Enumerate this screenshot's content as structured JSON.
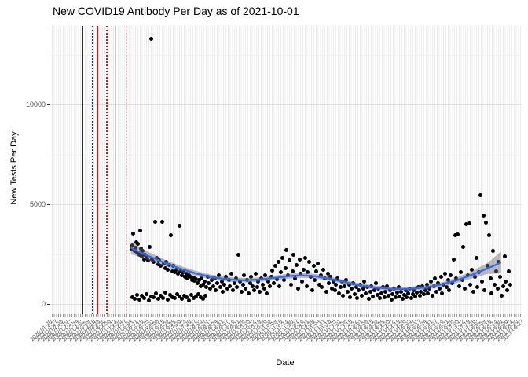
{
  "chart_data": {
    "type": "scatter",
    "title": "New COVID19 Antibody Per Day as of 2021-10-01",
    "xlabel": "Date",
    "ylabel": "New Tests Per Day",
    "y_ticks": [
      0,
      5000,
      10000
    ],
    "y_minor_ticks": [
      2500,
      7500,
      12500
    ],
    "ylim": [
      -510,
      13940
    ],
    "grid": "on",
    "legend": "none",
    "point_color": "#000000",
    "smooth_line_color": "#3366FF",
    "ci_fill_color": "rgba(110,110,110,0.45)",
    "x_tick_labels": [
      "2020-01-20",
      "2020-01-27",
      "2020-02-03",
      "2020-02-10",
      "2020-02-17",
      "2020-02-24",
      "2020-03-02",
      "2020-03-09",
      "2020-03-16",
      "2020-03-23",
      "2020-03-30",
      "2020-04-06",
      "2020-04-13",
      "2020-04-20",
      "2020-04-27",
      "2020-05-04",
      "2020-05-11",
      "2020-05-18",
      "2020-05-25",
      "2020-06-01",
      "2020-06-08",
      "2020-06-15",
      "2020-06-22",
      "2020-06-29",
      "2020-07-06",
      "2020-07-13",
      "2020-07-20",
      "2020-07-27",
      "2020-08-03",
      "2020-08-10",
      "2020-08-17",
      "2020-08-24",
      "2020-08-31",
      "2020-09-07",
      "2020-09-14",
      "2020-09-21",
      "2020-09-28",
      "2020-10-05",
      "2020-10-12",
      "2020-10-19",
      "2020-10-26",
      "2020-11-02",
      "2020-11-09",
      "2020-11-16",
      "2020-11-23",
      "2020-11-30",
      "2020-12-07",
      "2020-12-14",
      "2020-12-21",
      "2020-12-28",
      "2021-01-04",
      "2021-01-11",
      "2021-01-18",
      "2021-01-25",
      "2021-02-01",
      "2021-02-08",
      "2021-02-15",
      "2021-02-22",
      "2021-03-01",
      "2021-03-08",
      "2021-03-15",
      "2021-03-22",
      "2021-03-29",
      "2021-04-05",
      "2021-04-12",
      "2021-04-19",
      "2021-04-26",
      "2021-05-03",
      "2021-05-10",
      "2021-05-17",
      "2021-05-24",
      "2021-05-31",
      "2021-06-07",
      "2021-06-14",
      "2021-06-21",
      "2021-06-28",
      "2021-07-05",
      "2021-07-12",
      "2021-07-19",
      "2021-07-26",
      "2021-08-02",
      "2021-08-09",
      "2021-08-16",
      "2021-08-23",
      "2021-08-30",
      "2021-09-06",
      "2021-09-13",
      "2021-09-20",
      "2021-09-27"
    ],
    "event_vlines": [
      {
        "x_frac": 0.0708,
        "color": "#1a1ac8",
        "style": "solid"
      },
      {
        "x_frac": 0.0908,
        "color": "#1a1ac8",
        "style": "dotted"
      },
      {
        "x_frac": 0.1017,
        "color": "#e01010",
        "style": "solid"
      },
      {
        "x_frac": 0.1208,
        "color": "#e01010",
        "style": "dotted"
      },
      {
        "x_frac": 0.1408,
        "color": "#ffb0c0",
        "style": "solid"
      },
      {
        "x_frac": 0.1617,
        "color": "#ffb0c0",
        "style": "dotted"
      }
    ],
    "smooth": {
      "x": [
        0.173,
        0.21,
        0.245,
        0.28,
        0.312,
        0.345,
        0.379,
        0.412,
        0.446,
        0.479,
        0.512,
        0.537,
        0.562,
        0.595,
        0.629,
        0.662,
        0.695,
        0.729,
        0.762,
        0.795,
        0.829,
        0.862,
        0.895,
        0.929,
        0.958
      ],
      "y": [
        2800,
        2400,
        2050,
        1750,
        1520,
        1340,
        1230,
        1190,
        1220,
        1310,
        1400,
        1430,
        1390,
        1260,
        1080,
        920,
        810,
        750,
        750,
        820,
        960,
        1170,
        1450,
        1780,
        2080
      ],
      "ci": [
        300,
        210,
        165,
        140,
        130,
        120,
        115,
        110,
        110,
        115,
        120,
        120,
        115,
        110,
        105,
        100,
        100,
        100,
        105,
        110,
        120,
        140,
        180,
        280,
        550
      ]
    },
    "points": [
      [
        0.174,
        2720
      ],
      [
        0.176,
        2950
      ],
      [
        0.178,
        3540
      ],
      [
        0.18,
        2640
      ],
      [
        0.182,
        2800
      ],
      [
        0.184,
        3110
      ],
      [
        0.186,
        2560
      ],
      [
        0.188,
        3030
      ],
      [
        0.19,
        2480
      ],
      [
        0.192,
        3700
      ],
      [
        0.194,
        2760
      ],
      [
        0.196,
        2400
      ],
      [
        0.198,
        2640
      ],
      [
        0.2,
        2240
      ],
      [
        0.203,
        2480
      ],
      [
        0.206,
        2320
      ],
      [
        0.209,
        2170
      ],
      [
        0.212,
        2870
      ],
      [
        0.215,
        13300
      ],
      [
        0.218,
        2240
      ],
      [
        0.221,
        2090
      ],
      [
        0.224,
        4130
      ],
      [
        0.227,
        2320
      ],
      [
        0.23,
        1970
      ],
      [
        0.233,
        2170
      ],
      [
        0.236,
        1890
      ],
      [
        0.239,
        4130
      ],
      [
        0.242,
        2010
      ],
      [
        0.245,
        1810
      ],
      [
        0.248,
        2090
      ],
      [
        0.251,
        1730
      ],
      [
        0.254,
        1930
      ],
      [
        0.257,
        3430
      ],
      [
        0.26,
        1650
      ],
      [
        0.263,
        1890
      ],
      [
        0.266,
        1580
      ],
      [
        0.269,
        1730
      ],
      [
        0.272,
        1500
      ],
      [
        0.275,
        3930
      ],
      [
        0.278,
        1650
      ],
      [
        0.281,
        1420
      ],
      [
        0.284,
        1580
      ],
      [
        0.287,
        1350
      ],
      [
        0.29,
        1500
      ],
      [
        0.293,
        1270
      ],
      [
        0.296,
        1420
      ],
      [
        0.299,
        1350
      ],
      [
        0.302,
        1200
      ],
      [
        0.305,
        1310
      ],
      [
        0.308,
        1160
      ],
      [
        0.311,
        1230
      ],
      [
        0.175,
        350
      ],
      [
        0.18,
        240
      ],
      [
        0.185,
        470
      ],
      [
        0.19,
        200
      ],
      [
        0.195,
        430
      ],
      [
        0.2,
        280
      ],
      [
        0.205,
        510
      ],
      [
        0.21,
        160
      ],
      [
        0.215,
        390
      ],
      [
        0.22,
        320
      ],
      [
        0.225,
        550
      ],
      [
        0.23,
        240
      ],
      [
        0.235,
        430
      ],
      [
        0.24,
        310
      ],
      [
        0.245,
        590
      ],
      [
        0.25,
        200
      ],
      [
        0.255,
        470
      ],
      [
        0.26,
        350
      ],
      [
        0.265,
        280
      ],
      [
        0.27,
        510
      ],
      [
        0.275,
        390
      ],
      [
        0.28,
        240
      ],
      [
        0.285,
        430
      ],
      [
        0.29,
        320
      ],
      [
        0.295,
        160
      ],
      [
        0.3,
        470
      ],
      [
        0.305,
        280
      ],
      [
        0.31,
        390
      ],
      [
        0.315,
        510
      ],
      [
        0.32,
        350
      ],
      [
        0.325,
        240
      ],
      [
        0.33,
        430
      ],
      [
        0.314,
        1040
      ],
      [
        0.317,
        1190
      ],
      [
        0.32,
        900
      ],
      [
        0.323,
        1270
      ],
      [
        0.326,
        980
      ],
      [
        0.329,
        1120
      ],
      [
        0.332,
        830
      ],
      [
        0.335,
        1350
      ],
      [
        0.338,
        1040
      ],
      [
        0.341,
        760
      ],
      [
        0.344,
        1190
      ],
      [
        0.347,
        900
      ],
      [
        0.35,
        1270
      ],
      [
        0.353,
        690
      ],
      [
        0.356,
        1040
      ],
      [
        0.359,
        1430
      ],
      [
        0.362,
        830
      ],
      [
        0.365,
        1120
      ],
      [
        0.368,
        620
      ],
      [
        0.371,
        980
      ],
      [
        0.374,
        1350
      ],
      [
        0.377,
        760
      ],
      [
        0.38,
        1190
      ],
      [
        0.383,
        900
      ],
      [
        0.386,
        1510
      ],
      [
        0.389,
        690
      ],
      [
        0.392,
        1040
      ],
      [
        0.395,
        1270
      ],
      [
        0.398,
        830
      ],
      [
        0.401,
        2470
      ],
      [
        0.404,
        1120
      ],
      [
        0.407,
        620
      ],
      [
        0.41,
        980
      ],
      [
        0.413,
        1430
      ],
      [
        0.416,
        760
      ],
      [
        0.419,
        1190
      ],
      [
        0.422,
        550
      ],
      [
        0.425,
        1040
      ],
      [
        0.428,
        1350
      ],
      [
        0.431,
        900
      ],
      [
        0.434,
        690
      ],
      [
        0.437,
        1510
      ],
      [
        0.44,
        830
      ],
      [
        0.443,
        1120
      ],
      [
        0.446,
        620
      ],
      [
        0.449,
        1270
      ],
      [
        0.452,
        980
      ],
      [
        0.455,
        760
      ],
      [
        0.458,
        1430
      ],
      [
        0.461,
        550
      ],
      [
        0.464,
        1120
      ],
      [
        0.467,
        900
      ],
      [
        0.47,
        1350
      ],
      [
        0.473,
        1690
      ],
      [
        0.476,
        1040
      ],
      [
        0.479,
        1890
      ],
      [
        0.482,
        1230
      ],
      [
        0.485,
        2090
      ],
      [
        0.488,
        900
      ],
      [
        0.491,
        1580
      ],
      [
        0.494,
        2320
      ],
      [
        0.497,
        1190
      ],
      [
        0.5,
        1810
      ],
      [
        0.503,
        2680
      ],
      [
        0.506,
        1420
      ],
      [
        0.509,
        2170
      ],
      [
        0.512,
        980
      ],
      [
        0.515,
        1650
      ],
      [
        0.518,
        2470
      ],
      [
        0.521,
        1270
      ],
      [
        0.524,
        1930
      ],
      [
        0.527,
        760
      ],
      [
        0.53,
        2240
      ],
      [
        0.533,
        1500
      ],
      [
        0.536,
        1120
      ],
      [
        0.539,
        1730
      ],
      [
        0.542,
        2320
      ],
      [
        0.545,
        900
      ],
      [
        0.548,
        1580
      ],
      [
        0.551,
        2090
      ],
      [
        0.554,
        1350
      ],
      [
        0.557,
        690
      ],
      [
        0.56,
        1890
      ],
      [
        0.563,
        1190
      ],
      [
        0.566,
        1650
      ],
      [
        0.569,
        2010
      ],
      [
        0.572,
        980
      ],
      [
        0.575,
        1420
      ],
      [
        0.578,
        830
      ],
      [
        0.581,
        1730
      ],
      [
        0.584,
        1270
      ],
      [
        0.587,
        620
      ],
      [
        0.59,
        1500
      ],
      [
        0.593,
        1040
      ],
      [
        0.596,
        1350
      ],
      [
        0.599,
        760
      ],
      [
        0.602,
        1120
      ],
      [
        0.605,
        690
      ],
      [
        0.608,
        980
      ],
      [
        0.611,
        1270
      ],
      [
        0.614,
        550
      ],
      [
        0.617,
        830
      ],
      [
        0.62,
        1120
      ],
      [
        0.623,
        430
      ],
      [
        0.626,
        900
      ],
      [
        0.629,
        1190
      ],
      [
        0.632,
        620
      ],
      [
        0.635,
        980
      ],
      [
        0.638,
        350
      ],
      [
        0.641,
        760
      ],
      [
        0.644,
        1040
      ],
      [
        0.647,
        510
      ],
      [
        0.65,
        830
      ],
      [
        0.653,
        280
      ],
      [
        0.656,
        690
      ],
      [
        0.659,
        980
      ],
      [
        0.662,
        430
      ],
      [
        0.665,
        760
      ],
      [
        0.668,
        1120
      ],
      [
        0.671,
        550
      ],
      [
        0.674,
        830
      ],
      [
        0.677,
        240
      ],
      [
        0.68,
        620
      ],
      [
        0.683,
        900
      ],
      [
        0.686,
        390
      ],
      [
        0.689,
        690
      ],
      [
        0.692,
        1040
      ],
      [
        0.695,
        470
      ],
      [
        0.698,
        760
      ],
      [
        0.701,
        280
      ],
      [
        0.704,
        550
      ],
      [
        0.707,
        830
      ],
      [
        0.71,
        350
      ],
      [
        0.713,
        620
      ],
      [
        0.716,
        900
      ],
      [
        0.719,
        430
      ],
      [
        0.722,
        690
      ],
      [
        0.725,
        200
      ],
      [
        0.728,
        510
      ],
      [
        0.731,
        760
      ],
      [
        0.734,
        320
      ],
      [
        0.737,
        590
      ],
      [
        0.74,
        830
      ],
      [
        0.743,
        390
      ],
      [
        0.746,
        620
      ],
      [
        0.749,
        240
      ],
      [
        0.752,
        470
      ],
      [
        0.755,
        690
      ],
      [
        0.758,
        350
      ],
      [
        0.761,
        550
      ],
      [
        0.764,
        760
      ],
      [
        0.767,
        280
      ],
      [
        0.77,
        510
      ],
      [
        0.773,
        690
      ],
      [
        0.776,
        390
      ],
      [
        0.779,
        590
      ],
      [
        0.782,
        830
      ],
      [
        0.785,
        430
      ],
      [
        0.788,
        620
      ],
      [
        0.791,
        900
      ],
      [
        0.794,
        510
      ],
      [
        0.797,
        690
      ],
      [
        0.8,
        980
      ],
      [
        0.803,
        550
      ],
      [
        0.806,
        760
      ],
      [
        0.809,
        1120
      ],
      [
        0.812,
        430
      ],
      [
        0.815,
        900
      ],
      [
        0.818,
        1270
      ],
      [
        0.821,
        620
      ],
      [
        0.824,
        1040
      ],
      [
        0.827,
        760
      ],
      [
        0.83,
        1350
      ],
      [
        0.833,
        550
      ],
      [
        0.836,
        980
      ],
      [
        0.839,
        1500
      ],
      [
        0.842,
        830
      ],
      [
        0.845,
        1190
      ],
      [
        0.848,
        690
      ],
      [
        0.851,
        1420
      ],
      [
        0.854,
        1040
      ],
      [
        0.857,
        2240
      ],
      [
        0.86,
        3430
      ],
      [
        0.863,
        1270
      ],
      [
        0.866,
        3500
      ],
      [
        0.869,
        900
      ],
      [
        0.872,
        1580
      ],
      [
        0.875,
        1190
      ],
      [
        0.878,
        2870
      ],
      [
        0.881,
        760
      ],
      [
        0.884,
        3980
      ],
      [
        0.887,
        1420
      ],
      [
        0.89,
        4050
      ],
      [
        0.893,
        980
      ],
      [
        0.896,
        1730
      ],
      [
        0.899,
        620
      ],
      [
        0.902,
        1350
      ],
      [
        0.905,
        2320
      ],
      [
        0.908,
        830
      ],
      [
        0.911,
        1580
      ],
      [
        0.914,
        5470
      ],
      [
        0.917,
        1120
      ],
      [
        0.92,
        4410
      ],
      [
        0.923,
        690
      ],
      [
        0.926,
        4090
      ],
      [
        0.929,
        1890
      ],
      [
        0.932,
        3430
      ],
      [
        0.935,
        1270
      ],
      [
        0.938,
        550
      ],
      [
        0.941,
        2640
      ],
      [
        0.944,
        980
      ],
      [
        0.947,
        1650
      ],
      [
        0.95,
        760
      ],
      [
        0.953,
        2090
      ],
      [
        0.956,
        1350
      ],
      [
        0.959,
        430
      ],
      [
        0.962,
        890
      ],
      [
        0.965,
        2400
      ],
      [
        0.968,
        1120
      ],
      [
        0.971,
        670
      ],
      [
        0.974,
        1650
      ],
      [
        0.977,
        980
      ]
    ]
  }
}
